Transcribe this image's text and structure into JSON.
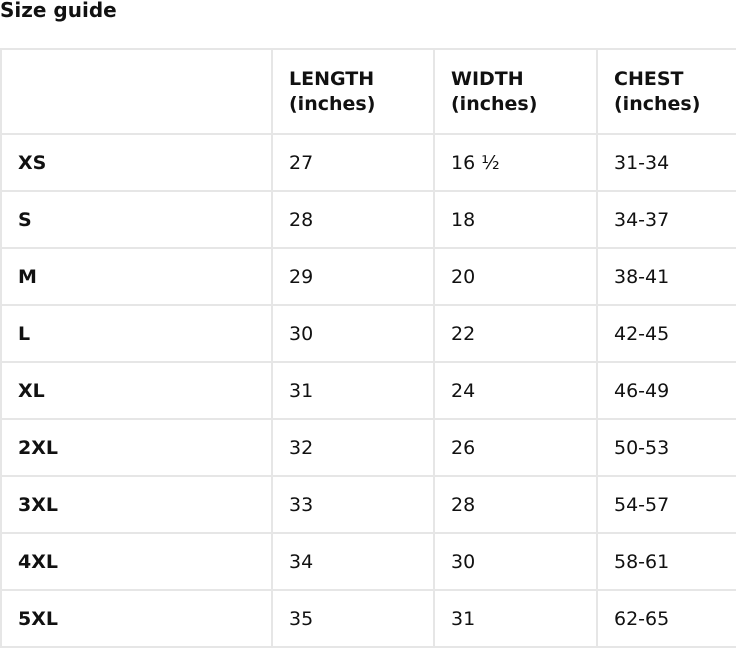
{
  "title": "Size guide",
  "table": {
    "headers": [
      {
        "name": "",
        "unit": ""
      },
      {
        "name": "LENGTH",
        "unit": "(inches)"
      },
      {
        "name": "WIDTH",
        "unit": "(inches)"
      },
      {
        "name": "CHEST",
        "unit": "(inches)"
      }
    ],
    "rows": [
      [
        "XS",
        "27",
        "16 ½",
        "31-34"
      ],
      [
        "S",
        "28",
        "18",
        "34-37"
      ],
      [
        "M",
        "29",
        "20",
        "38-41"
      ],
      [
        "L",
        "30",
        "22",
        "42-45"
      ],
      [
        "XL",
        "31",
        "24",
        "46-49"
      ],
      [
        "2XL",
        "32",
        "26",
        "50-53"
      ],
      [
        "3XL",
        "33",
        "28",
        "54-57"
      ],
      [
        "4XL",
        "34",
        "30",
        "58-61"
      ],
      [
        "5XL",
        "35",
        "31",
        "62-65"
      ]
    ]
  }
}
